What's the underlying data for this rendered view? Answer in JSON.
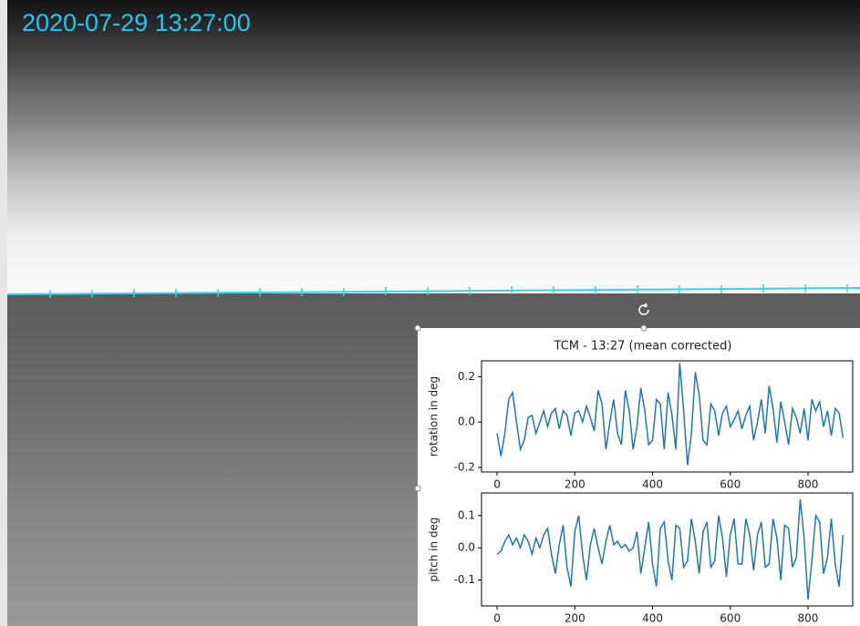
{
  "screen": {
    "timestamp": "2020-07-29 13:27:00"
  },
  "chart_data": [
    {
      "type": "line",
      "title": "TCM - 13:27 (mean corrected)",
      "ylabel": "rotation in deg",
      "color": "#1f77b4",
      "xlim": [
        -40,
        915
      ],
      "xticks": [
        0,
        200,
        400,
        600,
        800
      ],
      "ylim": [
        -0.22,
        0.27
      ],
      "yticks": [
        -0.2,
        {
          "value": 0,
          "label": "0.0"
        },
        0.2
      ],
      "x": [
        0,
        10,
        20,
        30,
        40,
        50,
        60,
        70,
        80,
        90,
        100,
        110,
        120,
        130,
        140,
        150,
        160,
        170,
        180,
        190,
        200,
        210,
        220,
        230,
        240,
        250,
        260,
        270,
        280,
        290,
        300,
        310,
        320,
        330,
        340,
        350,
        360,
        370,
        380,
        390,
        400,
        410,
        420,
        430,
        440,
        450,
        460,
        470,
        480,
        490,
        500,
        510,
        520,
        530,
        540,
        550,
        560,
        570,
        580,
        590,
        600,
        610,
        620,
        630,
        640,
        650,
        660,
        670,
        680,
        690,
        700,
        710,
        720,
        730,
        740,
        750,
        760,
        770,
        780,
        790,
        800,
        810,
        820,
        830,
        840,
        850,
        860,
        870,
        880,
        890
      ],
      "values": [
        -0.05,
        -0.15,
        -0.05,
        0.1,
        0.13,
        0.0,
        -0.12,
        -0.08,
        0.02,
        0.03,
        -0.05,
        0.0,
        0.05,
        -0.02,
        0.04,
        0.06,
        -0.03,
        0.05,
        0.03,
        -0.06,
        0.04,
        0.05,
        0.0,
        0.07,
        0.02,
        -0.04,
        0.14,
        0.08,
        -0.12,
        0.0,
        0.1,
        -0.05,
        -0.1,
        0.14,
        0.05,
        -0.12,
        -0.02,
        0.15,
        0.05,
        -0.1,
        -0.08,
        0.1,
        0.08,
        -0.12,
        0.13,
        0.03,
        -0.12,
        0.26,
        0.05,
        -0.19,
        -0.05,
        0.22,
        0.12,
        -0.08,
        -0.1,
        0.08,
        0.05,
        -0.06,
        0.04,
        0.07,
        -0.02,
        0.01,
        0.05,
        -0.03,
        0.03,
        0.07,
        -0.08,
        0.0,
        0.1,
        -0.05,
        0.16,
        0.06,
        -0.09,
        0.09,
        0.0,
        -0.1,
        0.06,
        0.02,
        -0.05,
        0.06,
        -0.08,
        0.1,
        0.05,
        0.09,
        -0.02,
        0.05,
        -0.06,
        0.06,
        0.04,
        -0.07
      ]
    },
    {
      "type": "line",
      "ylabel": "pitch in deg",
      "color": "#1f77b4",
      "xlim": [
        -40,
        915
      ],
      "xticks": [
        0,
        200,
        400,
        600,
        800
      ],
      "ylim": [
        -0.18,
        0.17
      ],
      "yticks": [
        -0.1,
        {
          "value": 0,
          "label": "0.0"
        },
        0.1
      ],
      "x": [
        0,
        10,
        20,
        30,
        40,
        50,
        60,
        70,
        80,
        90,
        100,
        110,
        120,
        130,
        140,
        150,
        160,
        170,
        180,
        190,
        200,
        210,
        220,
        230,
        240,
        250,
        260,
        270,
        280,
        290,
        300,
        310,
        320,
        330,
        340,
        350,
        360,
        370,
        380,
        390,
        400,
        410,
        420,
        430,
        440,
        450,
        460,
        470,
        480,
        490,
        500,
        510,
        520,
        530,
        540,
        550,
        560,
        570,
        580,
        590,
        600,
        610,
        620,
        630,
        640,
        650,
        660,
        670,
        680,
        690,
        700,
        710,
        720,
        730,
        740,
        750,
        760,
        770,
        780,
        790,
        800,
        810,
        820,
        830,
        840,
        850,
        860,
        870,
        880,
        890
      ],
      "values": [
        -0.02,
        -0.01,
        0.02,
        0.04,
        0.01,
        0.03,
        0.0,
        0.04,
        0.02,
        -0.02,
        0.03,
        0.0,
        0.04,
        0.06,
        -0.02,
        -0.08,
        0.01,
        0.07,
        -0.06,
        -0.12,
        0.05,
        0.1,
        -0.02,
        -0.1,
        0.01,
        0.06,
        0.0,
        -0.05,
        0.02,
        0.07,
        0.01,
        0.02,
        0.0,
        0.01,
        -0.01,
        0.0,
        0.05,
        -0.08,
        0.0,
        0.08,
        -0.05,
        -0.12,
        0.06,
        0.08,
        -0.04,
        -0.1,
        0.07,
        0.06,
        -0.06,
        -0.04,
        0.09,
        0.02,
        -0.08,
        0.05,
        0.08,
        -0.06,
        -0.04,
        0.1,
        0.03,
        -0.09,
        0.04,
        0.09,
        -0.05,
        -0.05,
        0.09,
        0.04,
        -0.07,
        0.04,
        0.08,
        -0.06,
        -0.05,
        0.09,
        0.03,
        -0.1,
        0.07,
        0.06,
        -0.06,
        -0.03,
        0.15,
        0.03,
        -0.16,
        -0.04,
        0.1,
        0.08,
        -0.08,
        -0.03,
        0.09,
        -0.05,
        -0.12,
        0.04
      ]
    }
  ]
}
